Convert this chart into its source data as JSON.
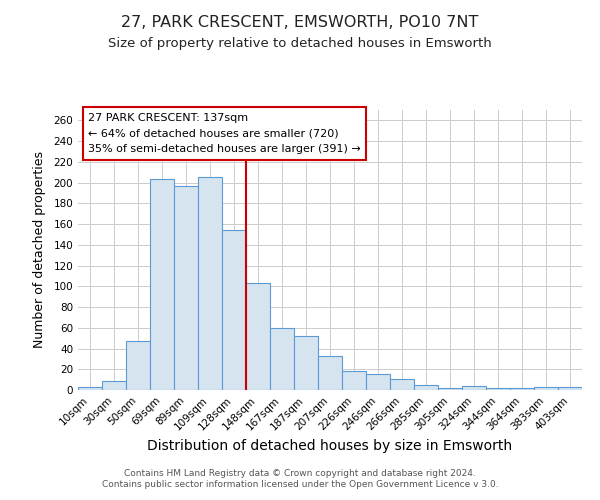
{
  "title": "27, PARK CRESCENT, EMSWORTH, PO10 7NT",
  "subtitle": "Size of property relative to detached houses in Emsworth",
  "xlabel": "Distribution of detached houses by size in Emsworth",
  "ylabel": "Number of detached properties",
  "categories": [
    "10sqm",
    "30sqm",
    "50sqm",
    "69sqm",
    "89sqm",
    "109sqm",
    "128sqm",
    "148sqm",
    "167sqm",
    "187sqm",
    "207sqm",
    "226sqm",
    "246sqm",
    "266sqm",
    "285sqm",
    "305sqm",
    "324sqm",
    "344sqm",
    "364sqm",
    "383sqm",
    "403sqm"
  ],
  "values": [
    3,
    9,
    47,
    203,
    197,
    205,
    154,
    103,
    60,
    52,
    33,
    18,
    15,
    11,
    5,
    2,
    4,
    2,
    2,
    3,
    3
  ],
  "bar_face_color": "#d6e4f0",
  "bar_edge_color": "#5b9bd5",
  "vline_x": 6.5,
  "vline_color": "#cc0000",
  "ylim": [
    0,
    270
  ],
  "yticks": [
    0,
    20,
    40,
    60,
    80,
    100,
    120,
    140,
    160,
    180,
    200,
    220,
    240,
    260
  ],
  "annotation_title": "27 PARK CRESCENT: 137sqm",
  "annotation_line1": "← 64% of detached houses are smaller (720)",
  "annotation_line2": "35% of semi-detached houses are larger (391) →",
  "annotation_box_edge_color": "#cc0000",
  "footer_line1": "Contains HM Land Registry data © Crown copyright and database right 2024.",
  "footer_line2": "Contains public sector information licensed under the Open Government Licence v 3.0.",
  "title_fontsize": 11.5,
  "subtitle_fontsize": 9.5,
  "xlabel_fontsize": 10,
  "ylabel_fontsize": 9,
  "tick_fontsize": 7.5,
  "annotation_fontsize": 8,
  "footer_fontsize": 6.5,
  "background_color": "#ffffff",
  "grid_color": "#cccccc"
}
